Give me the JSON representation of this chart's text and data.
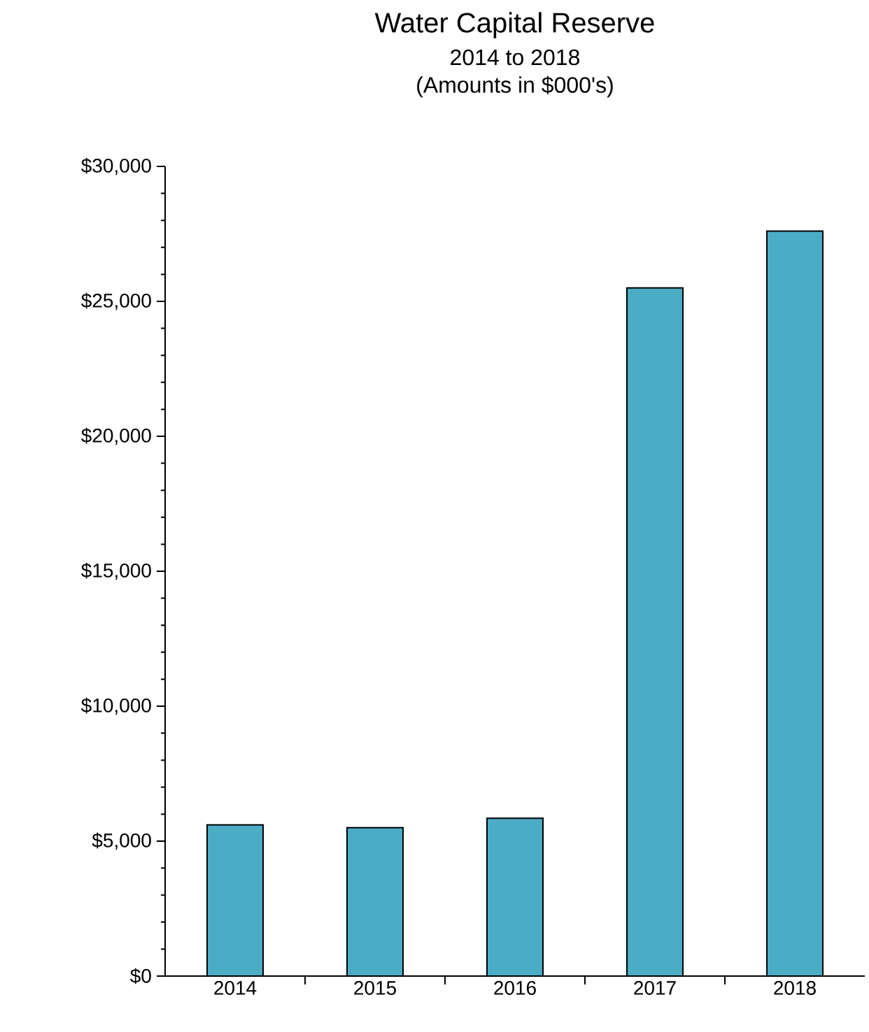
{
  "chart_data": {
    "type": "bar",
    "title": "Water Capital Reserve",
    "subtitle": "2014 to 2018",
    "annotations": [
      "(Amounts in $000's)"
    ],
    "categories": [
      "2014",
      "2015",
      "2016",
      "2017",
      "2018"
    ],
    "values": [
      5600,
      5500,
      5850,
      25500,
      27600
    ],
    "color": "#4bacc6",
    "ylim": [
      0,
      30000
    ],
    "yticks": [
      {
        "value": 0,
        "label": "$0"
      },
      {
        "value": 5000,
        "label": "$5,000"
      },
      {
        "value": 10000,
        "label": "$10,000"
      },
      {
        "value": 15000,
        "label": "$15,000"
      },
      {
        "value": 20000,
        "label": "$20,000"
      },
      {
        "value": 25000,
        "label": "$25,000"
      },
      {
        "value": 30000,
        "label": "$30,000"
      }
    ],
    "grid": false
  }
}
